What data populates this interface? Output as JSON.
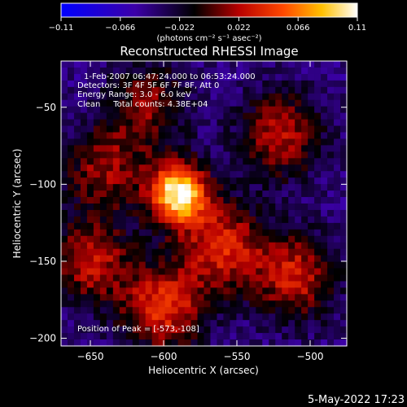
{
  "chart_data": {
    "type": "heatmap",
    "title": "Reconstructed RHESSI Image",
    "xlabel": "Heliocentric X (arcsec)",
    "ylabel": "Heliocentric Y (arcsec)",
    "xlim": [
      -670,
      -475
    ],
    "ylim": [
      -205,
      -20
    ],
    "x_ticks": [
      -650,
      -600,
      -550,
      -500
    ],
    "y_ticks": [
      -50,
      -100,
      -150,
      -200
    ],
    "x_tick_labels": [
      "−650",
      "−600",
      "−550",
      "−500"
    ],
    "y_tick_labels": [
      "−50",
      "−100",
      "−150",
      "−200"
    ],
    "colorbar": {
      "range": [
        -0.11,
        0.11
      ],
      "tick_labels": [
        "−0.11",
        "−0.066",
        "−0.022",
        "0.022",
        "0.066",
        "0.11"
      ],
      "units_label": "(photons cm⁻² s⁻¹ asec⁻²)",
      "colormap": [
        "#0000ff",
        "#3c00a8",
        "#000000",
        "#b80000",
        "#ff4800",
        "#ffc000",
        "#ffffff"
      ]
    },
    "info_lines": [
      "1-Feb-2007 06:47:24.000 to 06:53:24.000",
      "Detectors: 3F 4F 5F 6F 7F 8F, Att 0",
      "Energy Range: 3.0 - 6.0 keV",
      "Clean     Total counts: 4.38E+04"
    ],
    "peak_label": "Position of Peak = [-573,-108]",
    "peak": [
      -573,
      -108
    ],
    "sources": [
      {
        "x": -590,
        "y": -106,
        "flux": 0.11
      },
      {
        "x": -560,
        "y": -140,
        "flux": 0.04
      },
      {
        "x": -520,
        "y": -68,
        "flux": 0.03
      },
      {
        "x": -510,
        "y": -160,
        "flux": 0.035
      },
      {
        "x": -600,
        "y": -180,
        "flux": 0.045
      },
      {
        "x": -650,
        "y": -150,
        "flux": 0.03
      },
      {
        "x": -640,
        "y": -90,
        "flux": 0.02
      },
      {
        "x": -610,
        "y": -48,
        "flux": 0.015
      }
    ]
  },
  "timestamp": "5-May-2022 17:23"
}
